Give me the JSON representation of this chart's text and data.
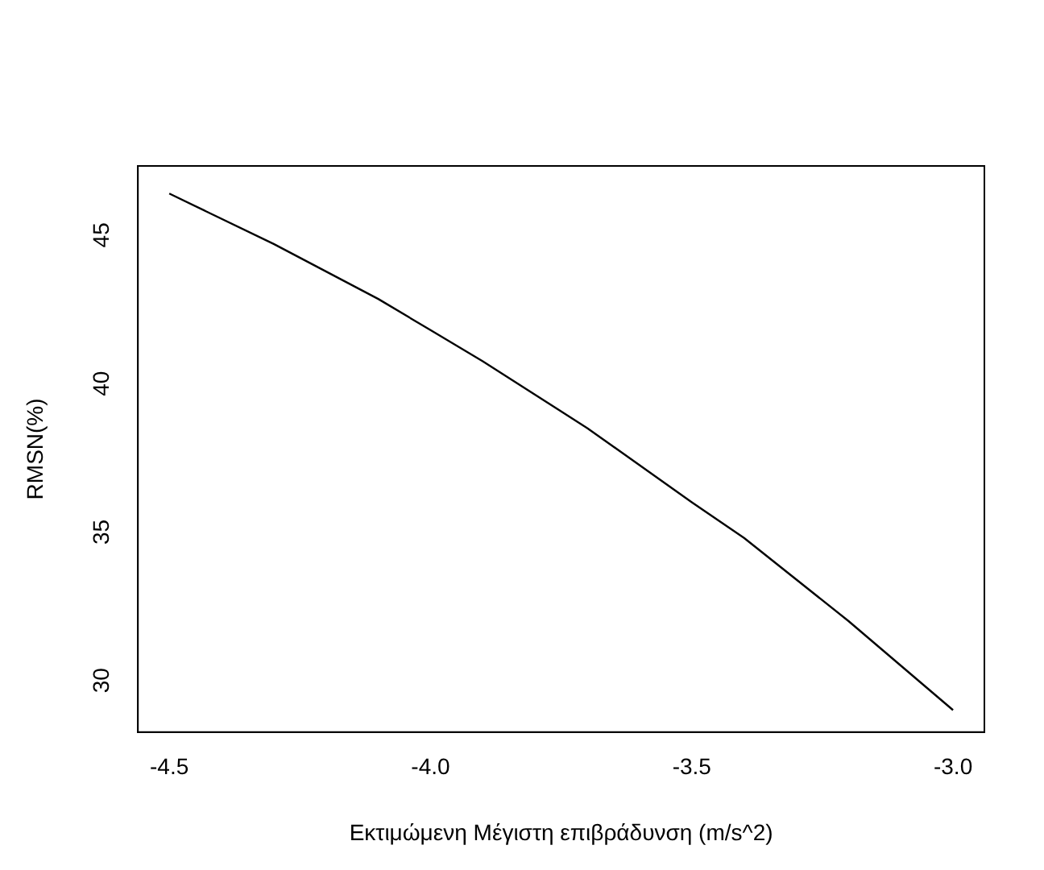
{
  "chart_data": {
    "type": "line",
    "xlabel": "Εκτιμώμενη Μέγιστη επιβράδυνση (m/s^2)",
    "ylabel": "RMSN(%)",
    "x": [
      -4.5,
      -4.3,
      -4.1,
      -4.0,
      -3.9,
      -3.7,
      -3.5,
      -3.4,
      -3.2,
      -3.0
    ],
    "series": [
      {
        "color": "#000000",
        "values": [
          46.4,
          44.7,
          42.85,
          41.8,
          40.75,
          38.5,
          36.0,
          34.8,
          32.0,
          29.0
        ]
      }
    ],
    "xlim": [
      -4.56,
      -2.94
    ],
    "xticks": [
      {
        "value": -4.5,
        "label": "-4.5"
      },
      {
        "value": -4,
        "label": "-4.0"
      },
      {
        "value": -3.5,
        "label": "-3.5"
      },
      {
        "value": -3,
        "label": "-3.0"
      }
    ],
    "ylim": [
      28.26,
      47.33
    ],
    "yticks": [
      30,
      35,
      40,
      45
    ],
    "grid": false,
    "legend": false,
    "marker": "none",
    "line_style": "solid"
  }
}
